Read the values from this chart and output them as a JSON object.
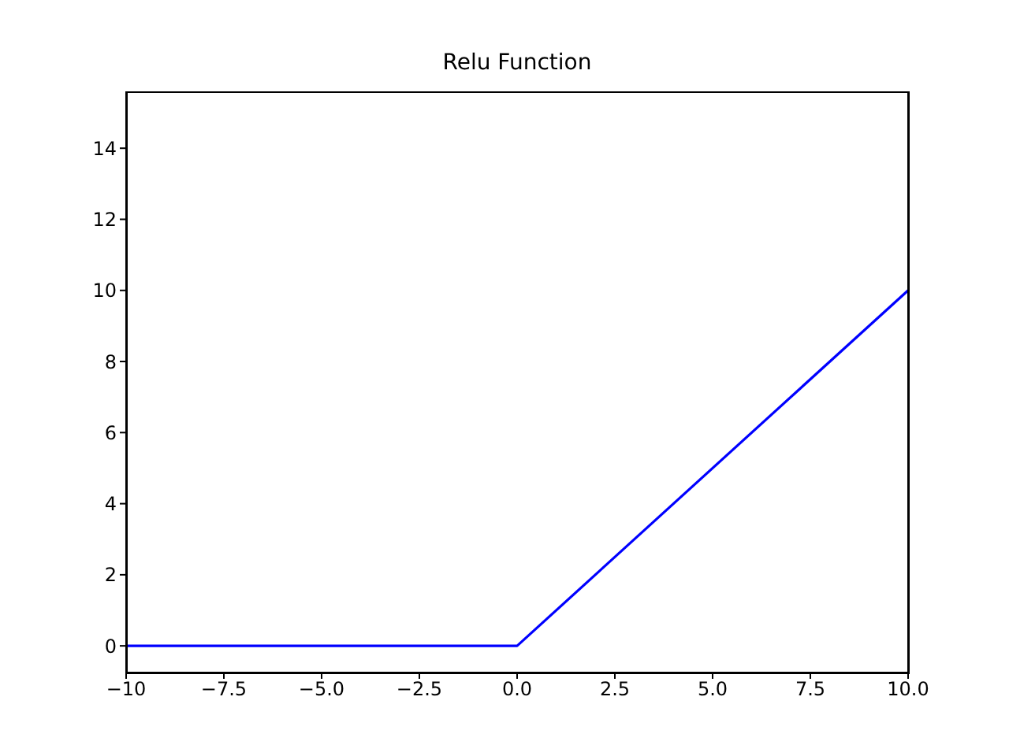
{
  "chart_data": {
    "type": "line",
    "title": "Relu Function",
    "x": [
      -10,
      0,
      10
    ],
    "series": [
      {
        "color": "#0000ff",
        "values": [
          0,
          0,
          10
        ]
      }
    ],
    "xlim": [
      -10,
      10
    ],
    "xticks": [
      {
        "value": -10,
        "label": "−10"
      },
      {
        "value": -7.5,
        "label": "−7.5"
      },
      {
        "value": -5,
        "label": "−5.0"
      },
      {
        "value": -2.5,
        "label": "−2.5"
      },
      {
        "value": 0,
        "label": "0.0"
      },
      {
        "value": 2.5,
        "label": "2.5"
      },
      {
        "value": 5,
        "label": "5.0"
      },
      {
        "value": 7.5,
        "label": "7.5"
      },
      {
        "value": 10,
        "label": "10.0"
      }
    ],
    "ylim": [
      -0.75,
      15.6
    ],
    "yticks": [
      0,
      2,
      4,
      6,
      8,
      10,
      12,
      14
    ]
  }
}
